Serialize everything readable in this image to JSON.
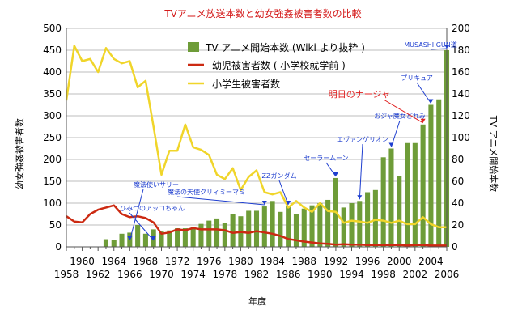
{
  "chart_data": {
    "type": "bar+line",
    "title": "TVアニメ放送本数と幼女強姦被害者数の比較",
    "xlabel": "年度",
    "ylabel_left": "幼女強姦被害者数",
    "ylabel_right": "TV アニメ開始本数",
    "ylim_left": [
      0,
      500
    ],
    "ylim_right": [
      0,
      200
    ],
    "xlim": [
      1958,
      2006
    ],
    "left_ticks": [
      0,
      50,
      100,
      150,
      200,
      250,
      300,
      350,
      400,
      450,
      500
    ],
    "right_ticks": [
      0,
      20,
      40,
      60,
      80,
      100,
      120,
      140,
      160,
      180,
      200
    ],
    "x_ticks_top": [
      1960,
      1964,
      1968,
      1972,
      1976,
      1980,
      1984,
      1988,
      1992,
      1996,
      2000,
      2004
    ],
    "x_ticks_bottom": [
      1958,
      1962,
      1966,
      1970,
      1974,
      1978,
      1982,
      1986,
      1990,
      1994,
      1998,
      2002,
      2006
    ],
    "grid": true,
    "legend_position": "top-right",
    "bar_series": {
      "name": "TV アニメ開始本数 (Wiki より抜粋 )",
      "axis": "right",
      "color": "#6e9c38",
      "years": [
        1963,
        1964,
        1965,
        1966,
        1967,
        1968,
        1969,
        1970,
        1971,
        1972,
        1973,
        1974,
        1975,
        1976,
        1977,
        1978,
        1979,
        1980,
        1981,
        1982,
        1983,
        1984,
        1985,
        1986,
        1987,
        1988,
        1989,
        1990,
        1991,
        1992,
        1993,
        1994,
        1995,
        1996,
        1997,
        1998,
        1999,
        2000,
        2001,
        2002,
        2003,
        2004,
        2005,
        2006
      ],
      "values": [
        7,
        6,
        12,
        13,
        20,
        12,
        16,
        14,
        15,
        17,
        17,
        18,
        21,
        24,
        26,
        22,
        30,
        28,
        33,
        33,
        37,
        42,
        32,
        37,
        30,
        35,
        38,
        40,
        43,
        63,
        36,
        40,
        42,
        50,
        52,
        82,
        90,
        65,
        95,
        95,
        112,
        130,
        135,
        180
      ]
    },
    "line_series": [
      {
        "name": "幼児被害者数 ( 小学校就学前 )",
        "axis": "left",
        "color": "#cc2a12",
        "years": [
          1958,
          1959,
          1960,
          1961,
          1962,
          1963,
          1964,
          1965,
          1966,
          1967,
          1968,
          1969,
          1970,
          1971,
          1972,
          1973,
          1974,
          1975,
          1976,
          1977,
          1978,
          1979,
          1980,
          1981,
          1982,
          1983,
          1984,
          1985,
          1986,
          1987,
          1988,
          1989,
          1990,
          1991,
          1992,
          1993,
          1994,
          1995,
          1996,
          1997,
          1998,
          1999,
          2000,
          2001,
          2002,
          2003,
          2004,
          2005,
          2006
        ],
        "values": [
          70,
          58,
          56,
          75,
          85,
          90,
          95,
          75,
          68,
          70,
          66,
          56,
          30,
          33,
          40,
          38,
          43,
          40,
          40,
          40,
          38,
          32,
          34,
          32,
          36,
          33,
          30,
          25,
          18,
          15,
          12,
          10,
          8,
          7,
          5,
          6,
          5,
          5,
          4,
          4,
          4,
          4,
          4,
          3,
          4,
          4,
          3,
          3,
          3
        ]
      },
      {
        "name": "小学生被害者数",
        "axis": "left",
        "color": "#f0d52a",
        "years": [
          1958,
          1959,
          1960,
          1961,
          1962,
          1963,
          1964,
          1965,
          1966,
          1967,
          1968,
          1969,
          1970,
          1971,
          1972,
          1973,
          1974,
          1975,
          1976,
          1977,
          1978,
          1979,
          1980,
          1981,
          1982,
          1983,
          1984,
          1985,
          1986,
          1987,
          1988,
          1989,
          1990,
          1991,
          1992,
          1993,
          1994,
          1995,
          1996,
          1997,
          1998,
          1999,
          2000,
          2001,
          2002,
          2003,
          2004,
          2005,
          2006
        ],
        "values": [
          335,
          460,
          425,
          430,
          400,
          455,
          430,
          420,
          425,
          365,
          380,
          275,
          165,
          220,
          220,
          280,
          228,
          222,
          210,
          165,
          155,
          180,
          130,
          160,
          175,
          125,
          120,
          125,
          90,
          105,
          90,
          80,
          100,
          82,
          80,
          55,
          60,
          58,
          55,
          62,
          60,
          55,
          60,
          52,
          52,
          68,
          52,
          45,
          45
        ]
      }
    ],
    "annotations": [
      {
        "text": "魔法使いサリー",
        "year": 1966
      },
      {
        "text": "ひみつのアッコちゃん",
        "year": 1969
      },
      {
        "text": "魔法の天使クリィミーマミ",
        "year": 1983
      },
      {
        "text": "ZZガンダム",
        "year": 1986
      },
      {
        "text": "セーラームーン",
        "year": 1992
      },
      {
        "text": "エヴァンゲリオン",
        "year": 1995
      },
      {
        "text": "おジャ魔女どれみ",
        "year": 1999
      },
      {
        "text": "明日のナージャ",
        "year": 2003,
        "color": "#e02020"
      },
      {
        "text": "プリキュア",
        "year": 2004
      },
      {
        "text": "MUSASHI GUN道",
        "year": 2006
      }
    ]
  }
}
